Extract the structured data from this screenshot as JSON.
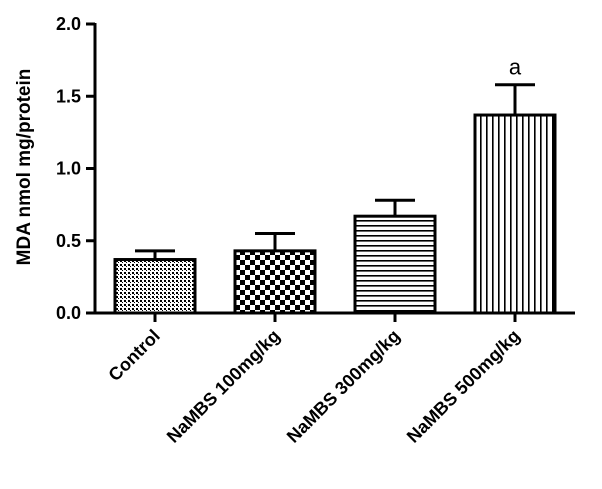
{
  "chart_data": {
    "type": "bar",
    "title": "",
    "xlabel": "",
    "ylabel": "MDA nmol mg/protein",
    "ylim": [
      0,
      2.0
    ],
    "yticks": [
      "0.0",
      "0.5",
      "1.0",
      "1.5",
      "2.0"
    ],
    "ytick_values": [
      0,
      0.5,
      1.0,
      1.5,
      2.0
    ],
    "categories": [
      "Control",
      "NaMBS 100mg/kg",
      "NaMBS 300mg/kg",
      "NaMBS 500mg/kg"
    ],
    "values": [
      0.37,
      0.43,
      0.67,
      1.37
    ],
    "errors": [
      0.06,
      0.12,
      0.11,
      0.21
    ],
    "annotations": [
      "",
      "",
      "",
      "a"
    ],
    "patterns": [
      "fine-crosshatch",
      "checkerboard",
      "horizontal-lines",
      "vertical-lines"
    ],
    "grid": false,
    "legend": "none",
    "bar_color": "#000000",
    "background": "#ffffff"
  }
}
